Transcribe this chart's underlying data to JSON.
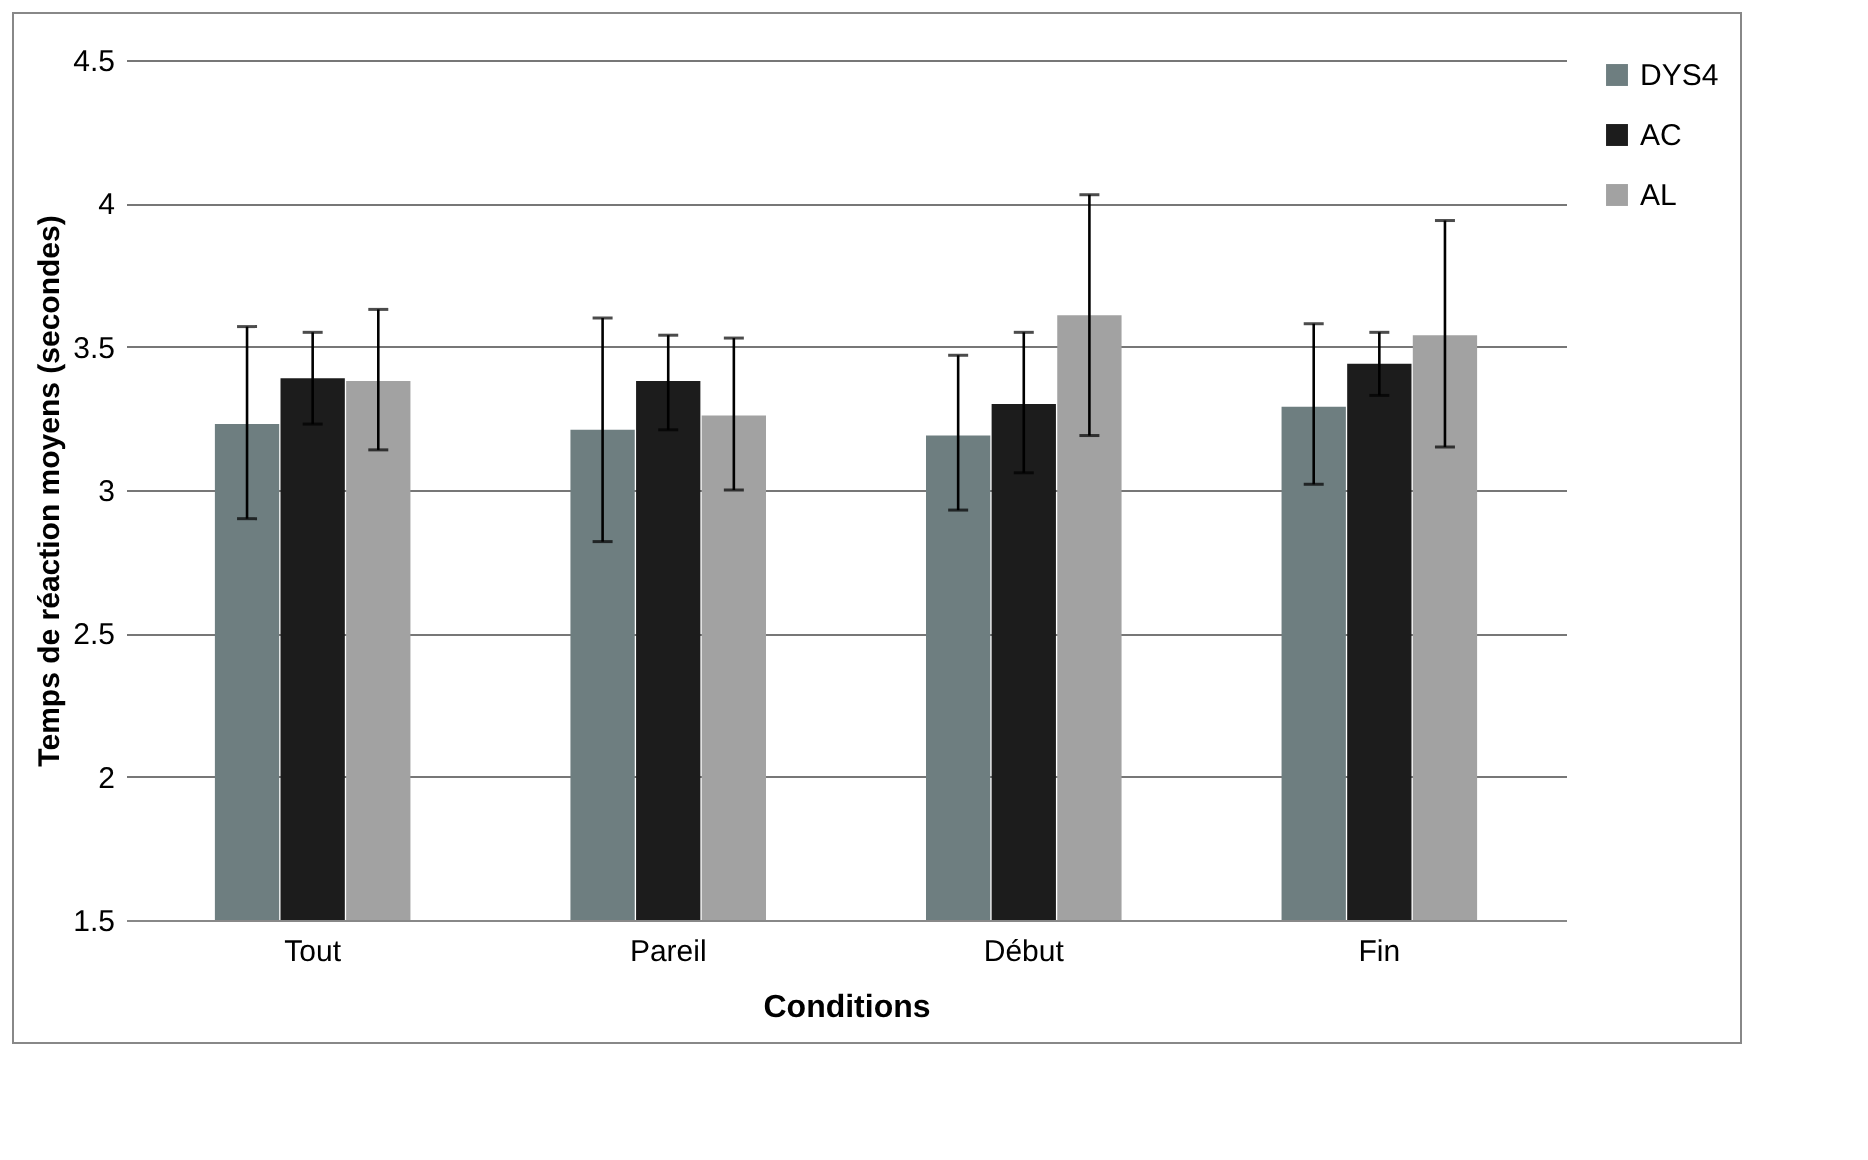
{
  "chart_data": {
    "type": "bar",
    "xlabel": "Conditions",
    "ylabel": "Temps de réaction moyens (secondes)",
    "categories": [
      "Tout",
      "Pareil",
      "Début",
      "Fin"
    ],
    "series": [
      {
        "name": "DYS4",
        "color": "#6e7e80",
        "values": [
          3.23,
          3.21,
          3.19,
          3.29
        ],
        "errors": [
          [
            2.9,
            3.57
          ],
          [
            2.82,
            3.6
          ],
          [
            2.93,
            3.47
          ],
          [
            3.02,
            3.58
          ]
        ]
      },
      {
        "name": "AC",
        "color": "#1c1c1c",
        "values": [
          3.39,
          3.38,
          3.3,
          3.44
        ],
        "errors": [
          [
            3.23,
            3.55
          ],
          [
            3.21,
            3.54
          ],
          [
            3.06,
            3.55
          ],
          [
            3.33,
            3.55
          ]
        ]
      },
      {
        "name": "AL",
        "color": "#a2a2a2",
        "values": [
          3.38,
          3.26,
          3.61,
          3.54
        ],
        "errors": [
          [
            3.14,
            3.63
          ],
          [
            3.0,
            3.53
          ],
          [
            3.19,
            4.03
          ],
          [
            3.15,
            3.94
          ]
        ]
      }
    ],
    "ylim": [
      1.5,
      4.5
    ],
    "yticks": [
      1.5,
      2,
      2.5,
      3,
      3.5,
      4,
      4.5
    ],
    "grid": "y",
    "legend": "right"
  }
}
